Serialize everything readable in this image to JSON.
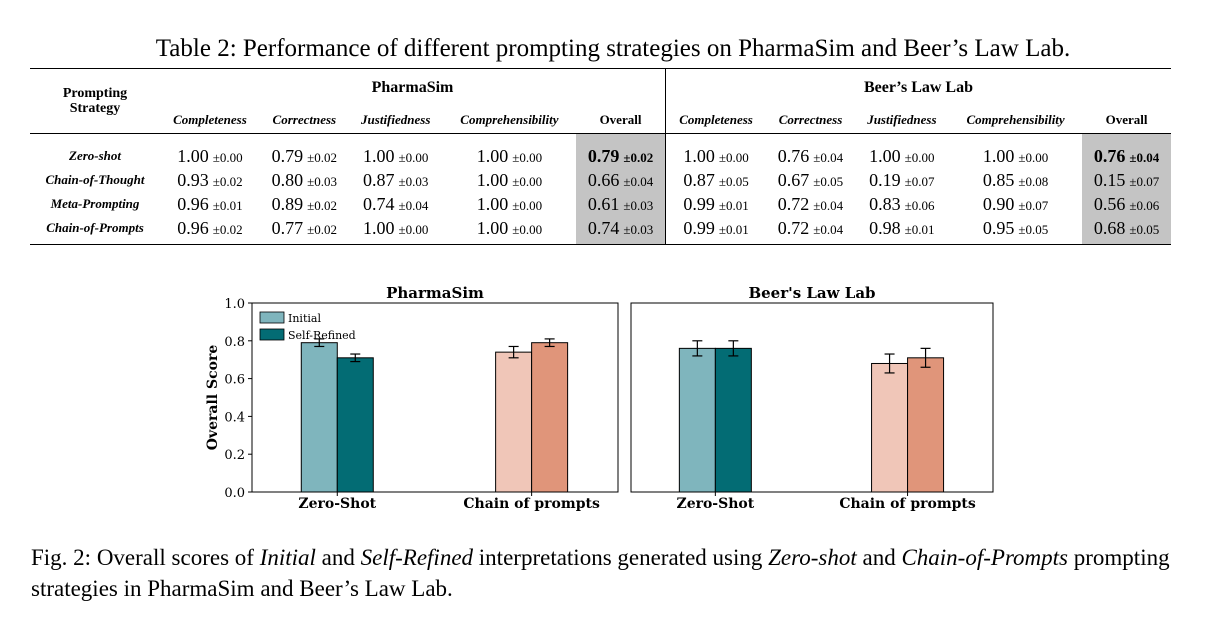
{
  "table": {
    "caption": "Table 2: Performance of different prompting strategies on PharmaSim and Beer’s Law Lab.",
    "strategy_header_line1": "Prompting",
    "strategy_header_line2": "Strategy",
    "groups": [
      "PharmaSim",
      "Beer’s Law Lab"
    ],
    "metrics": [
      "Completeness",
      "Correctness",
      "Justifiedness",
      "Comprehensibility",
      "Overall"
    ],
    "rows": [
      {
        "name": "Zero-shot",
        "cells": [
          [
            "1.00",
            "±0.00"
          ],
          [
            "0.79",
            "±0.02"
          ],
          [
            "1.00",
            "±0.00"
          ],
          [
            "1.00",
            "±0.00"
          ],
          [
            "0.79",
            "±0.02"
          ],
          [
            "1.00",
            "±0.00"
          ],
          [
            "0.76",
            "±0.04"
          ],
          [
            "1.00",
            "±0.00"
          ],
          [
            "1.00",
            "±0.00"
          ],
          [
            "0.76",
            "±0.04"
          ]
        ]
      },
      {
        "name": "Chain-of-Thought",
        "cells": [
          [
            "0.93",
            "±0.02"
          ],
          [
            "0.80",
            "±0.03"
          ],
          [
            "0.87",
            "±0.03"
          ],
          [
            "1.00",
            "±0.00"
          ],
          [
            "0.66",
            "±0.04"
          ],
          [
            "0.87",
            "±0.05"
          ],
          [
            "0.67",
            "±0.05"
          ],
          [
            "0.19",
            "±0.07"
          ],
          [
            "0.85",
            "±0.08"
          ],
          [
            "0.15",
            "±0.07"
          ]
        ]
      },
      {
        "name": "Meta-Prompting",
        "cells": [
          [
            "0.96",
            "±0.01"
          ],
          [
            "0.89",
            "±0.02"
          ],
          [
            "0.74",
            "±0.04"
          ],
          [
            "1.00",
            "±0.00"
          ],
          [
            "0.61",
            "±0.03"
          ],
          [
            "0.99",
            "±0.01"
          ],
          [
            "0.72",
            "±0.04"
          ],
          [
            "0.83",
            "±0.06"
          ],
          [
            "0.90",
            "±0.07"
          ],
          [
            "0.56",
            "±0.06"
          ]
        ]
      },
      {
        "name": "Chain-of-Prompts",
        "cells": [
          [
            "0.96",
            "±0.02"
          ],
          [
            "0.77",
            "±0.02"
          ],
          [
            "1.00",
            "±0.00"
          ],
          [
            "1.00",
            "±0.00"
          ],
          [
            "0.74",
            "±0.03"
          ],
          [
            "0.99",
            "±0.01"
          ],
          [
            "0.72",
            "±0.04"
          ],
          [
            "0.98",
            "±0.01"
          ],
          [
            "0.95",
            "±0.05"
          ],
          [
            "0.68",
            "±0.05"
          ]
        ]
      }
    ]
  },
  "chart_data": {
    "type": "bar",
    "ylabel": "Overall Score",
    "ylim": [
      0.0,
      1.0
    ],
    "yticks": [
      "0.0",
      "0.2",
      "0.4",
      "0.6",
      "0.8",
      "1.0"
    ],
    "legend": [
      "Initial",
      "Self-Refined"
    ],
    "legend_colors": [
      "#7fb5bd",
      "#036c74"
    ],
    "categories": [
      "Zero-Shot",
      "Chain of prompts"
    ],
    "panels": [
      {
        "title": "PharmaSim",
        "groups": [
          {
            "category": "Zero-Shot",
            "initial": 0.79,
            "initial_err": 0.02,
            "refined": 0.71,
            "refined_err": 0.02,
            "colors": [
              "#7fb5bd",
              "#036c74"
            ]
          },
          {
            "category": "Chain of prompts",
            "initial": 0.74,
            "initial_err": 0.03,
            "refined": 0.79,
            "refined_err": 0.02,
            "colors": [
              "#f0c6b8",
              "#e0957a"
            ]
          }
        ]
      },
      {
        "title": "Beer's Law Lab",
        "groups": [
          {
            "category": "Zero-Shot",
            "initial": 0.76,
            "initial_err": 0.04,
            "refined": 0.76,
            "refined_err": 0.04,
            "colors": [
              "#7fb5bd",
              "#036c74"
            ]
          },
          {
            "category": "Chain of prompts",
            "initial": 0.68,
            "initial_err": 0.05,
            "refined": 0.71,
            "refined_err": 0.05,
            "colors": [
              "#f0c6b8",
              "#e0957a"
            ]
          }
        ]
      }
    ]
  },
  "figure_caption": {
    "prefix": "Fig. 2: Overall scores of ",
    "initial": "Initial",
    "and1": " and ",
    "refined": "Self-Refined",
    "mid": " interpretations generated using ",
    "zero": "Zero-shot",
    "and2": " and ",
    "cop": "Chain-of-Prompts",
    "suffix": " prompting strategies in PharmaSim and Beer’s Law Lab."
  }
}
